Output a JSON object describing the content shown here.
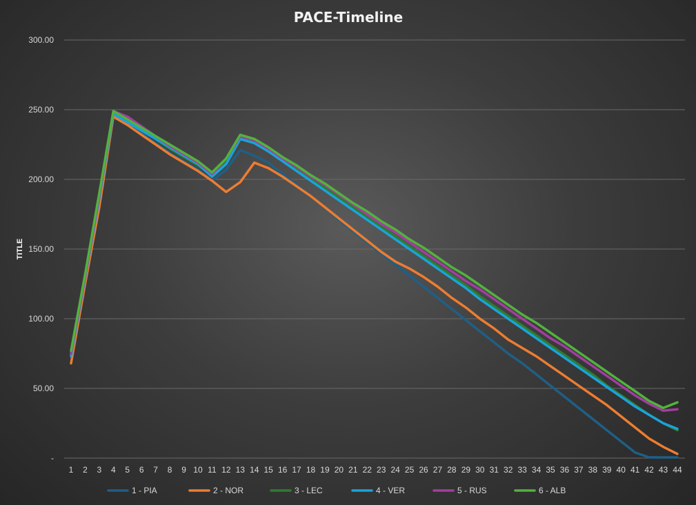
{
  "chart_data": {
    "type": "line",
    "title": "PACE-Timeline",
    "xlabel": "",
    "ylabel": "TITLE",
    "ylim": [
      0,
      300
    ],
    "yticks": [
      {
        "value": 0,
        "label": "-"
      },
      {
        "value": 50,
        "label": "50.00"
      },
      {
        "value": 100,
        "label": "100.00"
      },
      {
        "value": 150,
        "label": "150.00"
      },
      {
        "value": 200,
        "label": "200.00"
      },
      {
        "value": 250,
        "label": "250.00"
      },
      {
        "value": 300,
        "label": "300.00"
      }
    ],
    "grid": true,
    "legend_position": "bottom",
    "categories": [
      "1",
      "2",
      "3",
      "4",
      "5",
      "6",
      "7",
      "8",
      "9",
      "10",
      "11",
      "12",
      "13",
      "14",
      "15",
      "16",
      "17",
      "18",
      "19",
      "20",
      "21",
      "22",
      "23",
      "24",
      "25",
      "26",
      "27",
      "28",
      "29",
      "30",
      "31",
      "32",
      "33",
      "34",
      "35",
      "36",
      "37",
      "38",
      "39",
      "40",
      "41",
      "42",
      "43",
      "44"
    ],
    "series": [
      {
        "name": "1 - PIA",
        "color": "#1f5f86",
        "values": [
          73,
          128,
          185,
          246,
          240,
          233,
          226,
          219,
          213,
          207,
          199,
          207,
          221,
          217,
          212,
          204,
          196,
          188,
          180,
          171,
          163,
          155,
          147,
          139,
          131,
          123,
          115,
          107,
          99,
          91,
          83,
          75,
          68,
          60,
          52,
          44,
          36,
          28,
          20,
          12,
          4,
          0.5,
          0.5,
          0.5
        ]
      },
      {
        "name": "2 - NOR",
        "color": "#ed7d31",
        "values": [
          68,
          125,
          180,
          245,
          239,
          232,
          225,
          218,
          212,
          206,
          199,
          191,
          198,
          212,
          208,
          202,
          195,
          188,
          180,
          172,
          164,
          156,
          148,
          141,
          136,
          130,
          123,
          115,
          108,
          100,
          93,
          85,
          79,
          73,
          66,
          59,
          52,
          45,
          38,
          30,
          22,
          14,
          8,
          3
        ]
      },
      {
        "name": "3 - LEC",
        "color": "#2e7d32",
        "values": [
          75,
          130,
          188,
          248,
          242,
          236,
          229,
          222,
          216,
          210,
          203,
          213,
          230,
          227,
          221,
          215,
          208,
          201,
          194,
          187,
          180,
          173,
          166,
          159,
          152,
          145,
          138,
          131,
          124,
          116,
          109,
          102,
          95,
          88,
          81,
          74,
          67,
          60,
          52,
          45,
          38,
          31,
          25,
          20
        ]
      },
      {
        "name": "4 - VER",
        "color": "#1aa3db",
        "values": [
          73,
          129,
          186,
          247,
          241,
          235,
          229,
          223,
          217,
          211,
          202,
          211,
          229,
          226,
          220,
          213,
          206,
          199,
          192,
          185,
          178,
          171,
          164,
          157,
          150,
          143,
          136,
          129,
          122,
          114,
          107,
          100,
          93,
          86,
          79,
          72,
          65,
          58,
          51,
          44,
          37,
          31,
          25,
          21
        ]
      },
      {
        "name": "5 - RUS",
        "color": "#a23ea0",
        "values": [
          75,
          130,
          188,
          249,
          245,
          238,
          231,
          224,
          218,
          212,
          204,
          215,
          231,
          228,
          222,
          215,
          209,
          202,
          196,
          189,
          182,
          175,
          168,
          162,
          155,
          148,
          141,
          134,
          127,
          121,
          114,
          107,
          100,
          93,
          86,
          80,
          73,
          66,
          59,
          52,
          45,
          39,
          34,
          35
        ]
      },
      {
        "name": "6 - ALB",
        "color": "#52b33d",
        "values": [
          77,
          132,
          190,
          249,
          243,
          237,
          231,
          225,
          219,
          213,
          205,
          215,
          232,
          229,
          223,
          216,
          210,
          203,
          197,
          190,
          183,
          177,
          170,
          164,
          157,
          151,
          144,
          137,
          131,
          124,
          117,
          110,
          103,
          97,
          90,
          83,
          76,
          69,
          62,
          55,
          48,
          41,
          36,
          40
        ]
      }
    ]
  }
}
